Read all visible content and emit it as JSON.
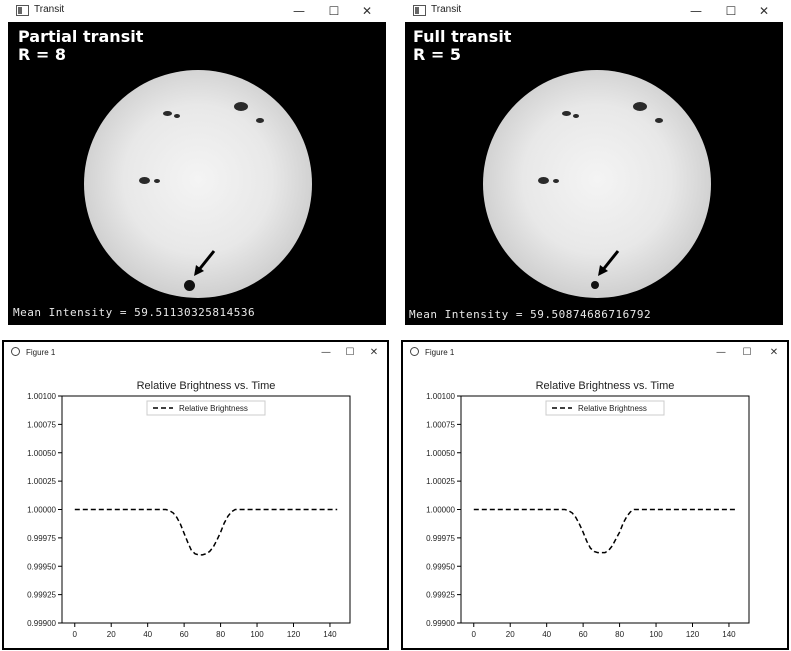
{
  "windows": [
    {
      "title": "Transit",
      "overlay_line1": "Partial transit",
      "overlay_line2": "R = 8",
      "mean_intensity_text": "Mean Intensity = 59.51130325814536"
    },
    {
      "title": "Transit",
      "overlay_line1": "Full transit",
      "overlay_line2": "R = 5",
      "mean_intensity_text": "Mean Intensity = 59.50874686716792"
    }
  ],
  "figures": [
    {
      "title": "Figure 1"
    },
    {
      "title": "Figure 1"
    }
  ],
  "controls": {
    "minimize": "—",
    "maximize": "☐",
    "close": "✕"
  },
  "icons": [
    "app-window-icon",
    "figure-icon",
    "arrow-icon"
  ],
  "colors": {
    "canvas_bg": "#000000",
    "curve": "#000000"
  },
  "chart_data": [
    {
      "type": "line",
      "title": "Relative Brightness vs. Time",
      "legend": "Relative Brightness",
      "legend_position": "top-center",
      "line_style": "dashed",
      "xlim": [
        -7,
        151
      ],
      "ylim": [
        0.999,
        1.001
      ],
      "xticks": [
        0,
        20,
        40,
        60,
        80,
        100,
        120,
        140
      ],
      "yticks": [
        "0.99900",
        "0.99925",
        "0.99950",
        "0.99975",
        "1.00000",
        "1.00025",
        "1.00050",
        "1.00075",
        "1.00100"
      ],
      "series": [
        {
          "name": "Relative Brightness",
          "x": [
            0,
            10,
            20,
            30,
            40,
            50,
            52,
            54,
            56,
            58,
            60,
            62,
            64,
            66,
            68,
            70,
            72,
            74,
            76,
            78,
            80,
            82,
            84,
            86,
            88,
            90,
            100,
            110,
            120,
            130,
            140,
            144
          ],
          "y": [
            1.0,
            1.0,
            1.0,
            1.0,
            1.0,
            1.0,
            0.99999,
            0.99997,
            0.99993,
            0.99987,
            0.99979,
            0.99971,
            0.99964,
            0.99961,
            0.9996,
            0.9996,
            0.99961,
            0.99963,
            0.99967,
            0.99973,
            0.9998,
            0.99988,
            0.99994,
            0.99998,
            1.0,
            1.0,
            1.0,
            1.0,
            1.0,
            1.0,
            1.0,
            1.0
          ]
        }
      ]
    },
    {
      "type": "line",
      "title": "Relative Brightness vs. Time",
      "legend": "Relative Brightness",
      "legend_position": "top-center",
      "line_style": "dashed",
      "xlim": [
        -7,
        151
      ],
      "ylim": [
        0.999,
        1.001
      ],
      "xticks": [
        0,
        20,
        40,
        60,
        80,
        100,
        120,
        140
      ],
      "yticks": [
        "0.99900",
        "0.99925",
        "0.99950",
        "0.99975",
        "1.00000",
        "1.00025",
        "1.00050",
        "1.00075",
        "1.00100"
      ],
      "series": [
        {
          "name": "Relative Brightness",
          "x": [
            0,
            10,
            20,
            30,
            40,
            50,
            52,
            54,
            56,
            58,
            60,
            62,
            64,
            66,
            68,
            70,
            72,
            74,
            76,
            78,
            80,
            82,
            84,
            86,
            88,
            90,
            100,
            110,
            120,
            130,
            140,
            144
          ],
          "y": [
            1.0,
            1.0,
            1.0,
            1.0,
            1.0,
            1.0,
            0.99999,
            0.99997,
            0.99993,
            0.99987,
            0.9998,
            0.99972,
            0.99966,
            0.99963,
            0.99962,
            0.99962,
            0.99962,
            0.99964,
            0.99968,
            0.99974,
            0.9998,
            0.99988,
            0.99994,
            0.99998,
            1.0,
            1.0,
            1.0,
            1.0,
            1.0,
            1.0,
            1.0,
            1.0
          ]
        }
      ]
    }
  ]
}
